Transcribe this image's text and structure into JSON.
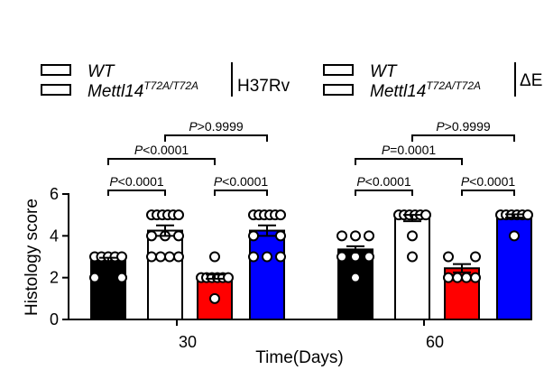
{
  "legend": {
    "entries": [
      {
        "name": "WT",
        "sup": "",
        "color": "#000000"
      },
      {
        "name": "Mettl14",
        "sup": "T72A/T72A",
        "color": "#ffffff"
      },
      {
        "name": "WT",
        "sup": "",
        "color": "#ff0000"
      },
      {
        "name": "Mettl14",
        "sup": "T72A/T72A",
        "color": "#0000ff"
      }
    ],
    "group_left": "H37Rv",
    "group_right": "ΔE"
  },
  "chart_data": {
    "type": "bar",
    "ylabel": "Histology score",
    "xlabel": "Time(Days)",
    "ylim": [
      0,
      6
    ],
    "yticks": [
      "0",
      "2",
      "4",
      "6"
    ],
    "categories": [
      "30",
      "60"
    ],
    "series": [
      {
        "name": "WT H37Rv",
        "color": "#000000",
        "values": [
          2.8,
          3.35
        ],
        "errors": [
          0.15,
          0.15
        ],
        "points": [
          [
            3,
            3,
            3,
            3,
            3,
            2,
            2
          ],
          [
            4,
            4,
            4,
            3,
            3,
            3,
            2
          ]
        ]
      },
      {
        "name": "Mettl14 T72A/T72A H37Rv",
        "color": "#ffffff",
        "values": [
          4.25,
          4.85
        ],
        "errors": [
          0.25,
          0.15
        ],
        "points": [
          [
            5,
            5,
            5,
            5,
            5,
            5,
            4,
            4,
            4,
            3,
            3,
            3,
            3
          ],
          [
            5,
            5,
            5,
            5,
            5,
            5,
            4,
            3
          ]
        ]
      },
      {
        "name": "WT ΔE",
        "color": "#ff0000",
        "values": [
          2.05,
          2.45
        ],
        "errors": [
          0.1,
          0.2
        ],
        "points": [
          [
            3,
            2,
            2,
            2,
            2,
            2,
            2,
            1
          ],
          [
            3,
            3,
            2,
            2,
            2,
            2
          ]
        ]
      },
      {
        "name": "Mettl14 T72A/T72A ΔE",
        "color": "#0000ff",
        "values": [
          4.25,
          4.95
        ],
        "errors": [
          0.25,
          0.08
        ],
        "points": [
          [
            5,
            5,
            5,
            5,
            5,
            5,
            4,
            4,
            3,
            3,
            3
          ],
          [
            5,
            5,
            5,
            5,
            5,
            5,
            4
          ]
        ]
      }
    ],
    "comparisons": [
      {
        "label": "P<0.0001",
        "group": 0,
        "from": 0,
        "to": 1
      },
      {
        "label": "P<0.0001",
        "group": 0,
        "from": 2,
        "to": 3
      },
      {
        "label": "P<0.0001",
        "group": 0,
        "from": 0,
        "to": 2
      },
      {
        "label": "P>0.9999",
        "group": 0,
        "from": 1,
        "to": 3
      },
      {
        "label": "P<0.0001",
        "group": 1,
        "from": 0,
        "to": 1
      },
      {
        "label": "P<0.0001",
        "group": 1,
        "from": 2,
        "to": 3
      },
      {
        "label": "P=0.0001",
        "group": 1,
        "from": 0,
        "to": 2
      },
      {
        "label": "P>0.9999",
        "group": 1,
        "from": 1,
        "to": 3
      }
    ]
  }
}
